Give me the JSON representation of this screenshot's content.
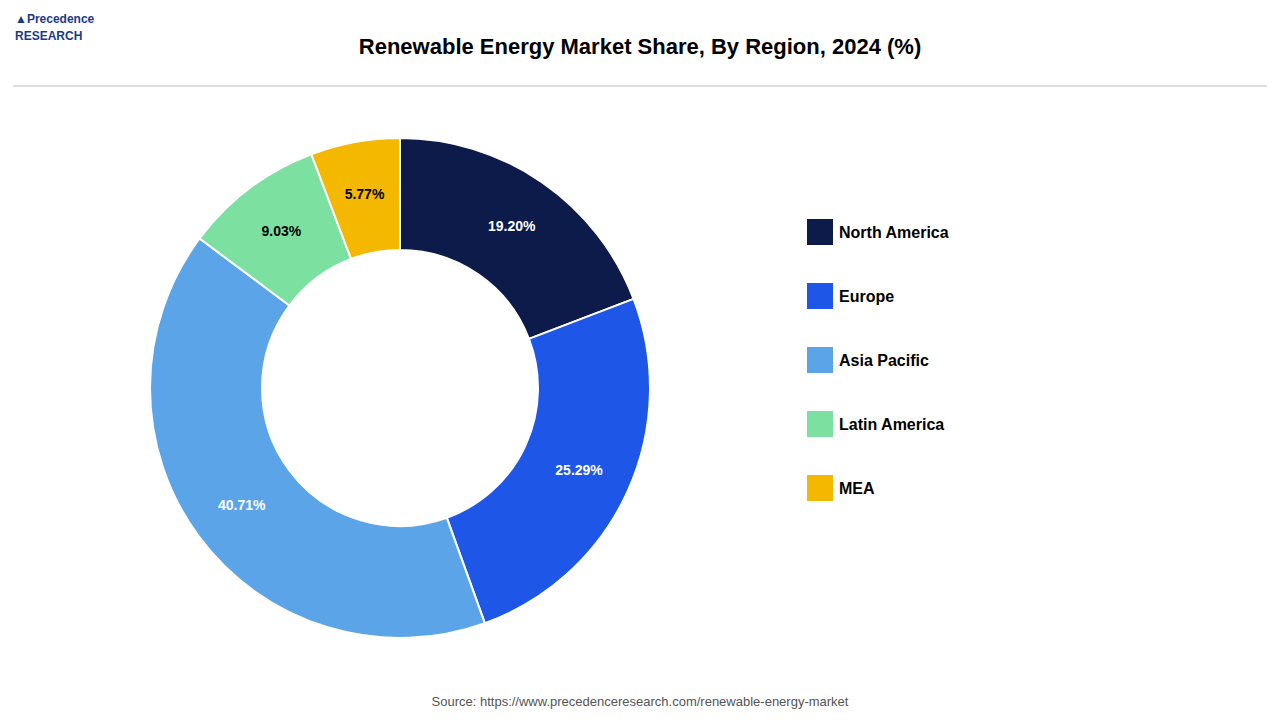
{
  "chart_data": {
    "type": "pie",
    "title": "Renewable Energy Market Share, By Region, 2024 (%)",
    "categories": [
      "North America",
      "Europe",
      "Asia Pacific",
      "Latin America",
      "MEA"
    ],
    "values": [
      19.2,
      25.29,
      40.71,
      9.03,
      5.77
    ],
    "value_labels": [
      "19.20%",
      "25.29%",
      "40.71%",
      "9.03%",
      "5.77%"
    ],
    "colors": [
      "#0d1b4b",
      "#1e56e8",
      "#5ba4e8",
      "#7be0a0",
      "#f5b800"
    ],
    "data_labels": true,
    "legend": "right",
    "annotations": [
      "▲Precedence\nRESEARCH",
      "Source: https://www.precedenceresearch.com/renewable-energy-market"
    ]
  }
}
